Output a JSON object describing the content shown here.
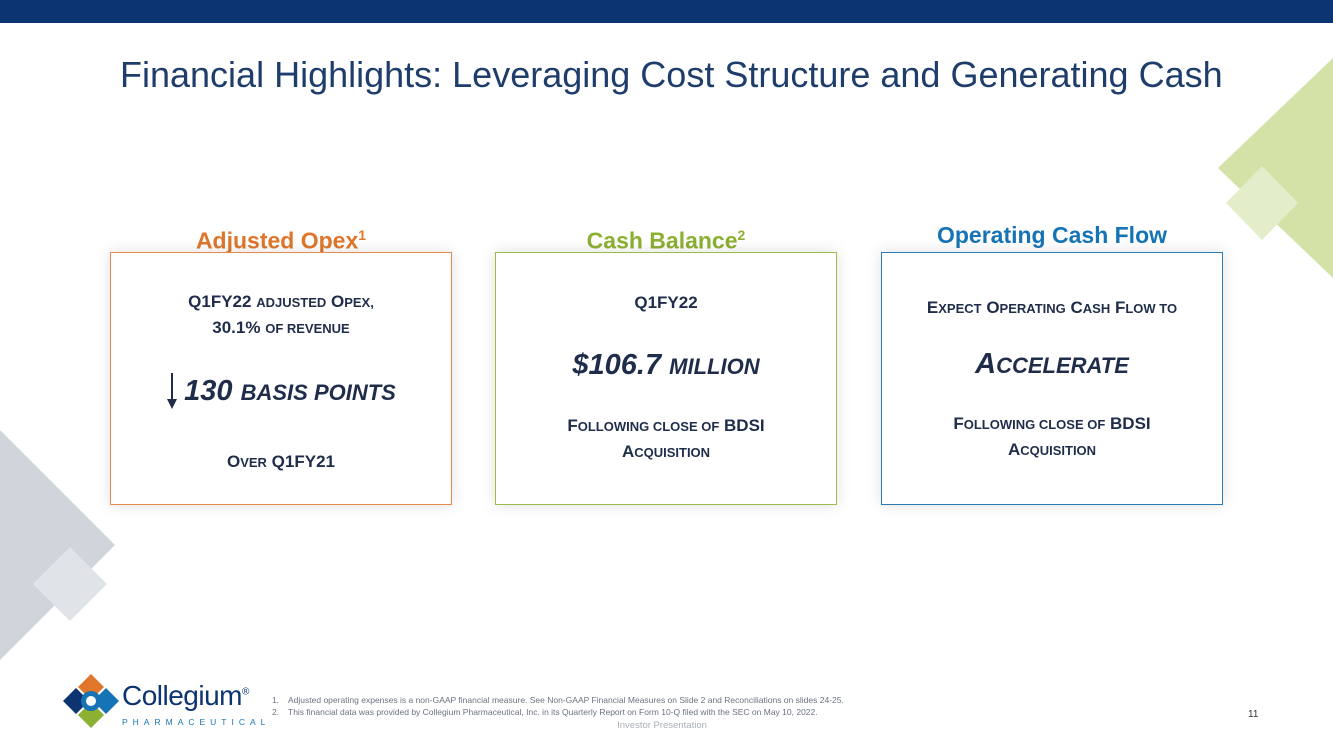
{
  "slide": {
    "title": "Financial Highlights:  Leveraging Cost Structure and Generating Cash",
    "page_number": "11",
    "footer_label": "Investor Presentation"
  },
  "cards": {
    "opex": {
      "heading": "Adjusted Opex",
      "heading_sup": "1",
      "line1_a": "Q1FY22 ",
      "line1_b": "adjusted",
      "line1_c": " O",
      "line1_d": "pex,",
      "line2_a": "30.1% ",
      "line2_b": "of revenue",
      "big_a": "130 ",
      "big_b": "basis points",
      "bottom_a": "O",
      "bottom_b": "ver",
      "bottom_c": " Q1FY21"
    },
    "cash": {
      "heading": "Cash Balance",
      "heading_sup": "2",
      "top": "Q1FY22",
      "big_a": "$106.7 ",
      "big_b": "million",
      "bottom1_a": "F",
      "bottom1_b": "ollowing close of",
      "bottom1_c": " BDSI",
      "bottom2_a": "A",
      "bottom2_b": "cquisition"
    },
    "ocf": {
      "heading": "Operating Cash Flow",
      "top_a": "E",
      "top_b": "xpect",
      "top_c": " O",
      "top_d": "perating",
      "top_e": " C",
      "top_f": "ash",
      "top_g": " F",
      "top_h": "low to",
      "big_a": "A",
      "big_b": "ccelerate",
      "bottom1_a": "F",
      "bottom1_b": "ollowing close of",
      "bottom1_c": " BDSI",
      "bottom2_a": "A",
      "bottom2_b": "cquisition"
    }
  },
  "footnotes": [
    {
      "num": "1.",
      "text": "Adjusted operating expenses is a non-GAAP financial measure. See Non-GAAP Financial Measures on Slide 2 and Reconciliations on slides 24-25."
    },
    {
      "num": "2.",
      "text": "This financial data was provided by Collegium Pharmaceutical, Inc. in its Quarterly Report on Form 10-Q filed with the SEC on May 10, 2022."
    }
  ],
  "logo": {
    "name": "Collegium",
    "reg": "®",
    "sub": "PHARMACEUTICAL"
  },
  "colors": {
    "navy": "#0b3470",
    "orange": "#e0762b",
    "green": "#8cb031",
    "blue": "#1674b6"
  }
}
